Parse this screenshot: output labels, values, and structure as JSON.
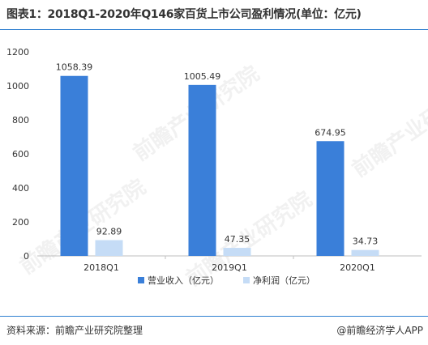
{
  "title": "图表1：2018Q1-2020年Q146家百货上市公司盈利情况(单位：亿元)",
  "source": "资料来源：前瞻产业研究院整理",
  "brand": "@前瞻经济学人APP",
  "watermark": "前瞻产业研究院",
  "colors": {
    "revenue": "#3a7fd9",
    "profit": "#c5dcf6",
    "rule": "#2f7fd0"
  },
  "chart_data": {
    "type": "bar",
    "title": "图表1：2018Q1-2020年Q146家百货上市公司盈利情况(单位：亿元)",
    "categories": [
      "2018Q1",
      "2019Q1",
      "2020Q1"
    ],
    "series": [
      {
        "name": "营业收入（亿元）",
        "values": [
          1058.39,
          1005.49,
          674.95
        ],
        "labels": [
          "1058.39",
          "1005.49",
          "674.95"
        ]
      },
      {
        "name": "净利润（亿元）",
        "values": [
          92.89,
          47.35,
          34.73
        ],
        "labels": [
          "92.89",
          "47.35",
          "34.73"
        ]
      }
    ],
    "ylim": [
      0,
      1200
    ],
    "yticks": [
      "0",
      "200",
      "400",
      "600",
      "800",
      "1000",
      "1200"
    ],
    "grid": false,
    "legend": "bottom"
  }
}
